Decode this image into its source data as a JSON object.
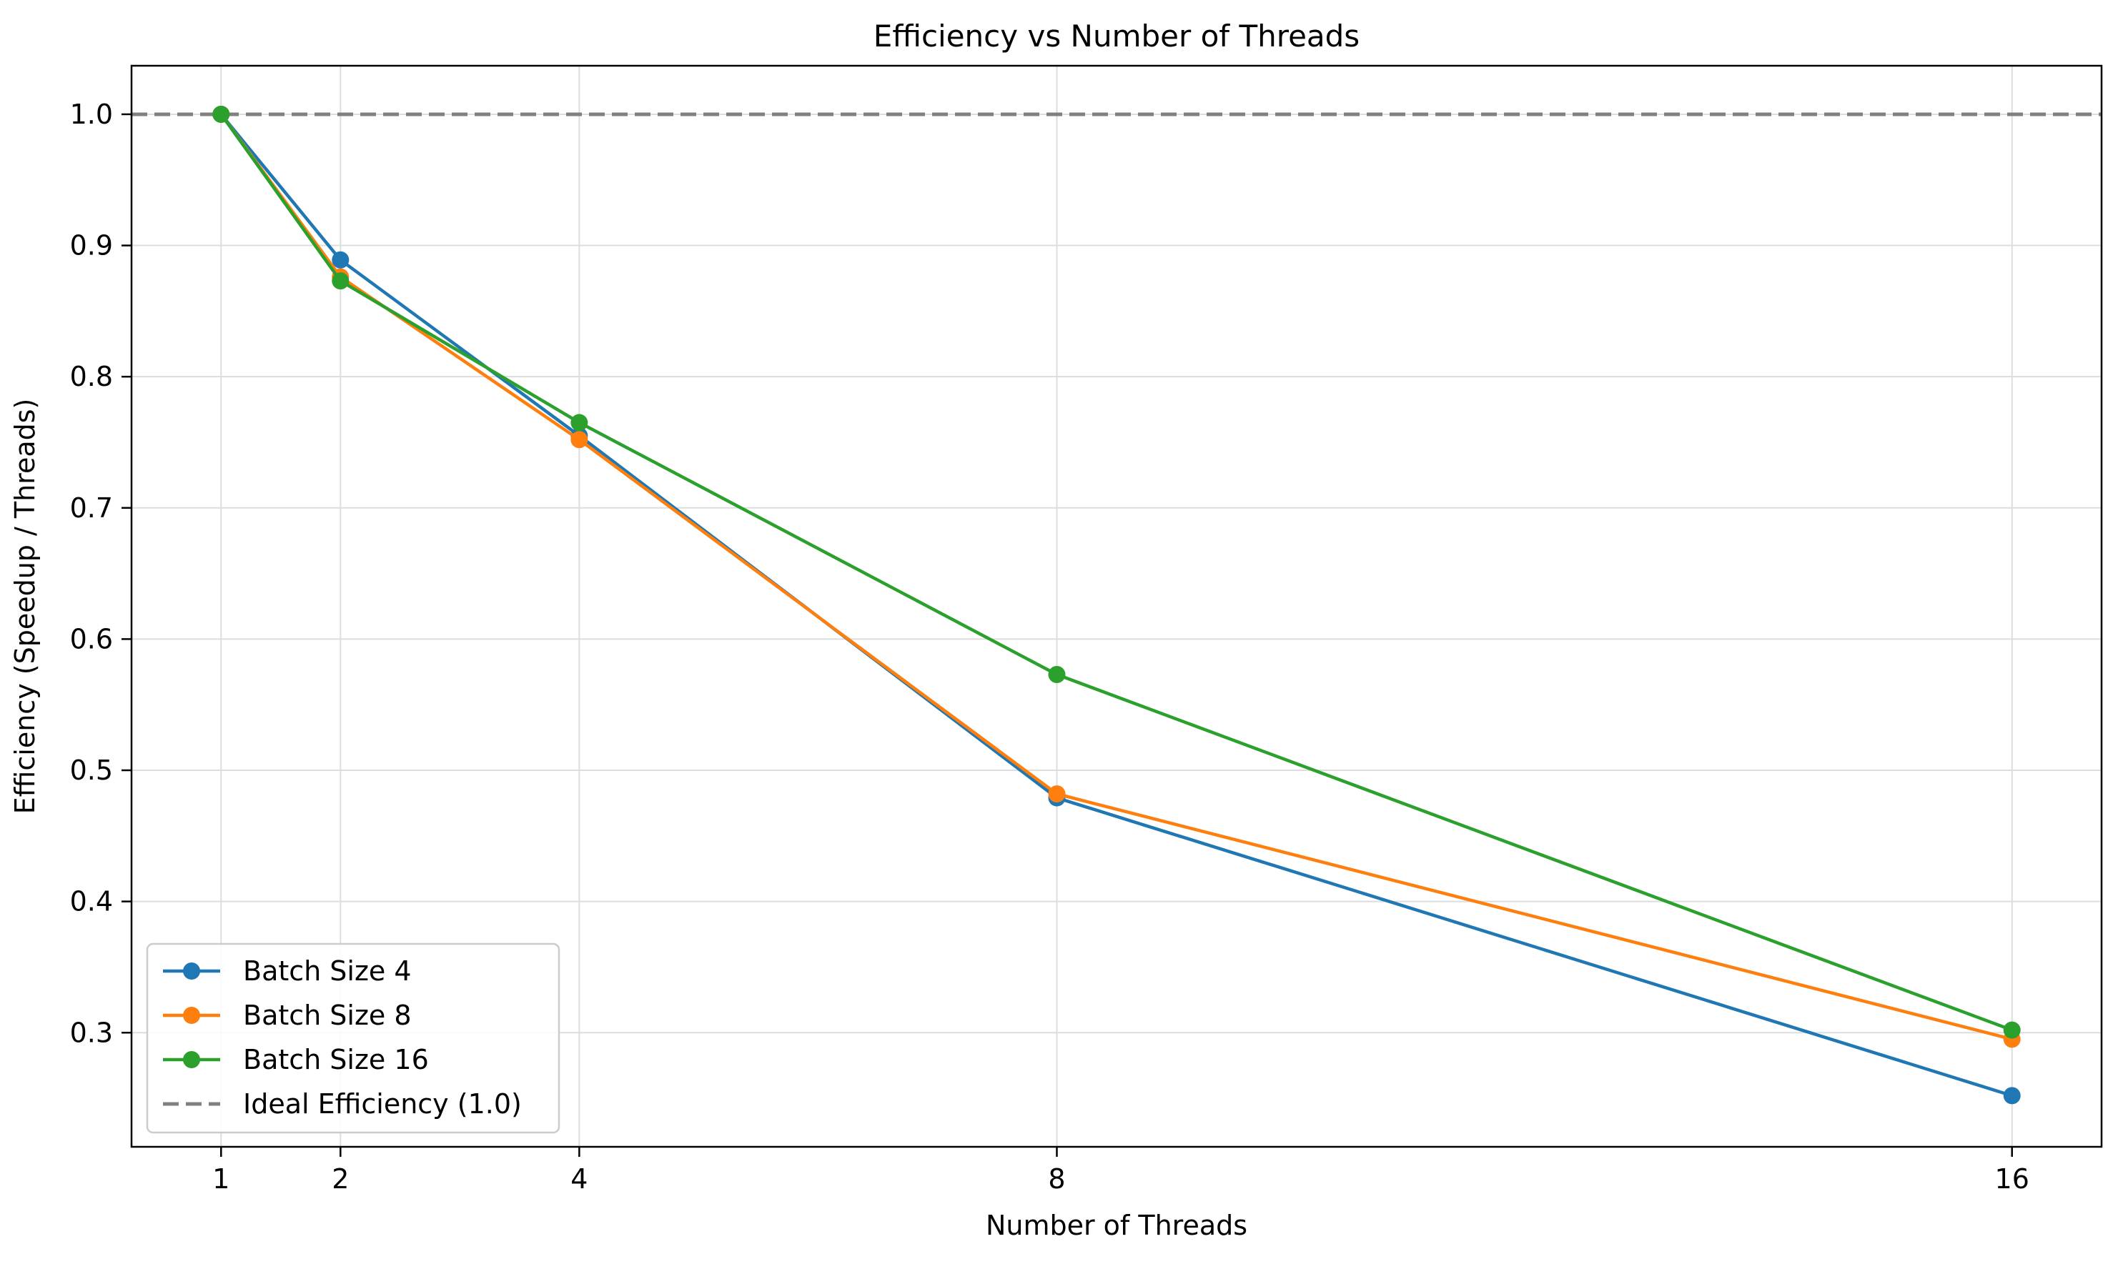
{
  "chart_data": {
    "type": "line",
    "title": "Efficiency vs Number of Threads",
    "xlabel": "Number of Threads",
    "ylabel": "Efficiency (Speedup / Threads)",
    "x": [
      1,
      2,
      4,
      8,
      16
    ],
    "xticks": [
      1,
      2,
      4,
      8,
      16
    ],
    "xlim": [
      0.25,
      16.75
    ],
    "yticks": [
      0.3,
      0.4,
      0.5,
      0.6,
      0.7,
      0.8,
      0.9,
      1.0
    ],
    "ylim": [
      0.213,
      1.037
    ],
    "grid": true,
    "legend_position": "lower-left",
    "series": [
      {
        "name": "Batch Size 4",
        "color": "#1f77b4",
        "values": [
          1.0,
          0.889,
          0.755,
          0.479,
          0.252
        ],
        "marker": "circle"
      },
      {
        "name": "Batch Size 8",
        "color": "#ff7f0e",
        "values": [
          1.0,
          0.876,
          0.752,
          0.482,
          0.295
        ],
        "marker": "circle"
      },
      {
        "name": "Batch Size 16",
        "color": "#2ca02c",
        "values": [
          1.0,
          0.873,
          0.765,
          0.573,
          0.302
        ],
        "marker": "circle"
      }
    ],
    "reference_lines": [
      {
        "name": "Ideal Efficiency (1.0)",
        "y": 1.0,
        "color": "#808080",
        "style": "dashed"
      }
    ]
  }
}
